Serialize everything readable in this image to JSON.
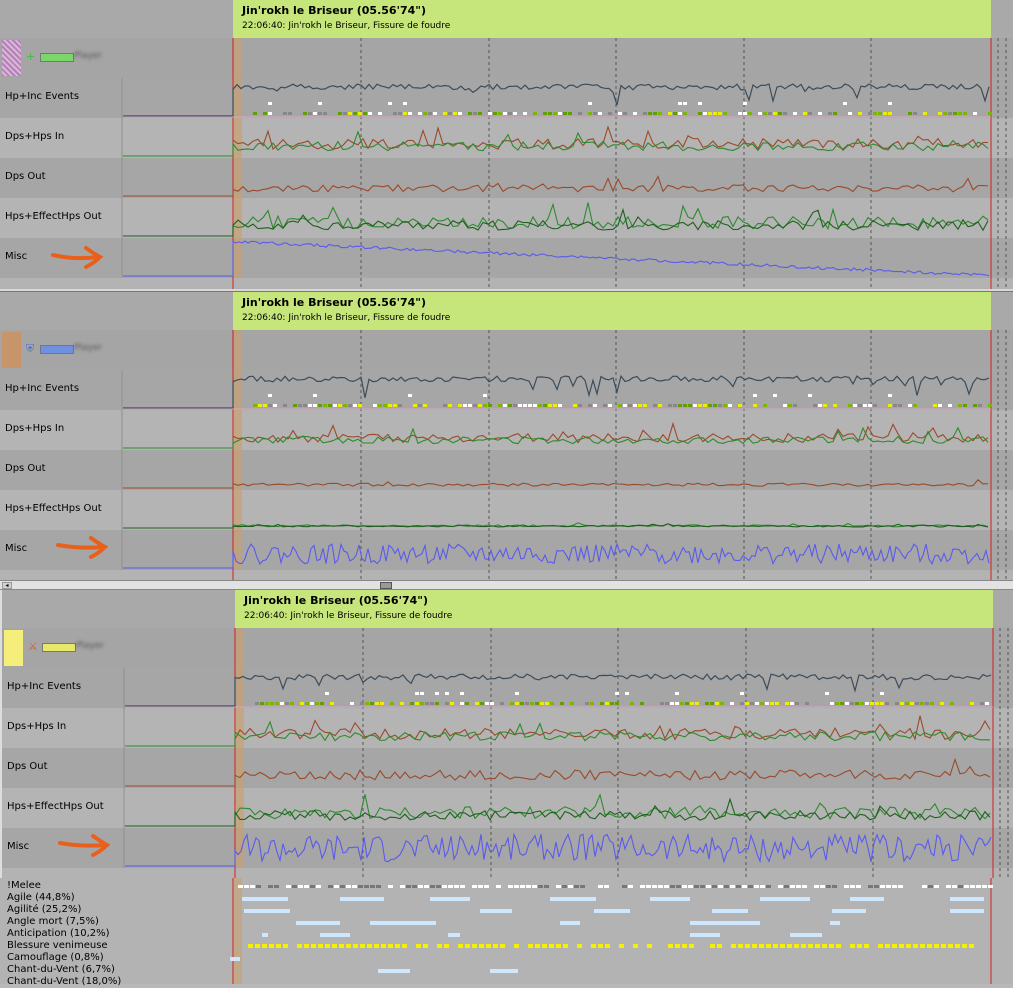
{
  "panels": [
    {
      "title": "Jin'rokh le Briseur  (05.56'74\")",
      "subtitle": "22:06:40: Jin'rokh le Briseur, Fissure de foudre",
      "player_color": "#c9a0c9",
      "player_bar_color": "#7dd66a",
      "player_icon": "plus-icon",
      "player_name": "Player"
    },
    {
      "title": "Jin'rokh le Briseur  (05.56'74\")",
      "subtitle": "22:06:40: Jin'rokh le Briseur, Fissure de foudre",
      "player_color": "#c8956a",
      "player_bar_color": "#6f8fe0",
      "player_icon": "shield-icon",
      "player_name": "Player"
    },
    {
      "title": "Jin'rokh le Briseur  (05.56'74\")",
      "subtitle": "22:06:40: Jin'rokh le Briseur, Fissure de foudre",
      "player_color": "#f5ee7a",
      "player_bar_color": "#e8e86a",
      "player_icon": "sword-icon",
      "player_name": "Player"
    }
  ],
  "row_labels": {
    "hp": "Hp+Inc Events",
    "dpsin": "Dps+Hps In",
    "dpsout": "Dps Out",
    "hpsout": "Hps+EffectHps Out",
    "misc": "Misc"
  },
  "buffs": [
    "!Melee",
    "Agile (44,8%)",
    "Agilité (25,2%)",
    "Angle mort (7,5%)",
    "Anticipation (10,2%)",
    "Blessure venimeuse",
    "Camouflage (0,8%)",
    "Chant-du-Vent (6,7%)",
    "Chant-du-Vent (18,0%)"
  ],
  "colors": {
    "hp_line": "#3c4c5a",
    "dps_line": "#9a4a2a",
    "heal_line": "#2d8a2d",
    "misc_line": "#5a5aee",
    "title_bg": "#c6e57a",
    "marker_red": "#d02020"
  }
}
